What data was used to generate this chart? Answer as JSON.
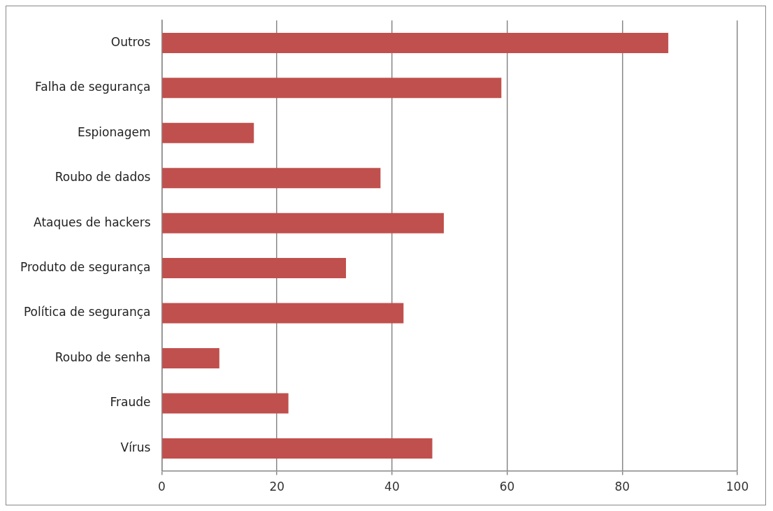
{
  "chart_data": {
    "type": "bar",
    "orientation": "horizontal",
    "categories": [
      "Outros",
      "Falha de segurança",
      "Espionagem",
      "Roubo de dados",
      "Ataques de hackers",
      "Produto de segurança",
      "Política de segurança",
      "Roubo de senha",
      "Fraude",
      "Vírus"
    ],
    "values": [
      88,
      59,
      16,
      38,
      49,
      32,
      42,
      10,
      22,
      47
    ],
    "color": "#c0504d",
    "xlim": [
      0,
      100
    ],
    "xticks": [
      0,
      20,
      40,
      60,
      80,
      100
    ],
    "grid": "x",
    "legend": false
  }
}
